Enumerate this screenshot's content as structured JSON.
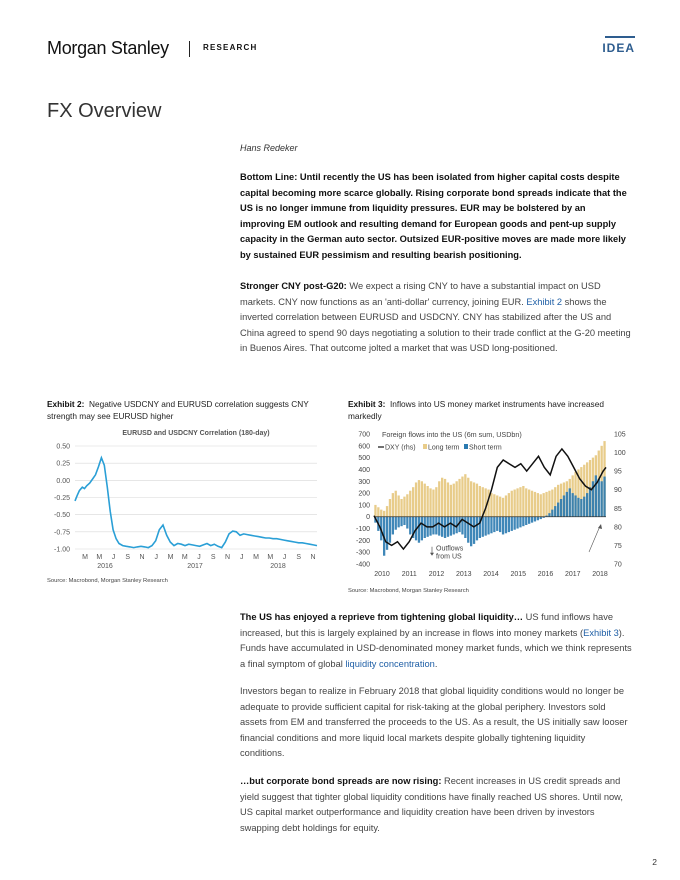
{
  "header": {
    "logo": "Morgan Stanley",
    "research": "RESEARCH",
    "idea": "IDEA"
  },
  "page_title": "FX Overview",
  "author": "Hans Redeker",
  "bottom_line": "Bottom Line: Until recently the US has been isolated from higher capital costs despite capital becoming more scarce globally. Rising corporate bond spreads indicate that the US is no longer immune from liquidity pressures. EUR may be bolstered by an improving EM outlook and resulting demand for European goods and pent-up supply capacity in the German auto sector. Outsized EUR-positive moves are made more likely by sustained EUR pessimism and resulting bearish positioning.",
  "cny_para": {
    "lead": "Stronger CNY post-G20:",
    "text1": " We expect a rising CNY to have a substantial impact on USD markets. CNY now functions as an 'anti-dollar' currency, joining EUR. ",
    "link": "Exhibit 2",
    "text2": " shows the inverted correlation between EURUSD and USDCNY. CNY has stabilized after the US and China agreed to spend 90 days negotiating a solution to their trade conflict at the G-20 meeting in Buenos Aires. That outcome jolted a market that was USD long-positioned."
  },
  "exhibit2": {
    "label": "Exhibit 2:",
    "title": "Negative USDCNY and EURUSD correlation suggests CNY strength may see EURUSD higher",
    "source": "Source: Macrobond, Morgan Stanley Research"
  },
  "exhibit3": {
    "label": "Exhibit 3:",
    "title": "Inflows into US money market instruments have increased markedly",
    "source": "Source: Macrobond, Morgan Stanley Research"
  },
  "chart_data": [
    {
      "type": "line",
      "title": "EURUSD and USDCNY Correlation (180-day)",
      "xlabel": "",
      "ylabel": "",
      "ylim": [
        -1.0,
        0.5
      ],
      "yticks": [
        "0.50",
        "0.25",
        "0.00",
        "-0.25",
        "-0.50",
        "-0.75",
        "-1.00"
      ],
      "month_ticks": [
        "M",
        "M",
        "J",
        "S",
        "N",
        "J",
        "M",
        "M",
        "J",
        "S",
        "N",
        "J",
        "M",
        "M",
        "J",
        "S",
        "N"
      ],
      "year_ticks": [
        "2016",
        "2017",
        "2018"
      ],
      "grid": true,
      "series": [
        {
          "color": "#2a9fd6",
          "x": [
            0,
            0.3,
            0.6,
            1,
            1.3,
            1.6,
            2,
            2.4,
            2.8,
            3.2,
            3.6,
            4.0,
            4.4,
            4.8,
            5.2,
            5.6,
            6,
            6.5,
            7,
            7.5,
            8,
            8.5,
            9,
            9.5,
            10,
            10.5,
            11,
            11.5,
            12,
            12.5,
            13,
            13.5,
            14,
            14.5,
            15,
            15.5,
            16,
            16.5,
            17,
            17.5,
            18,
            18.5,
            19,
            19.5,
            20,
            20.5,
            21,
            21.5,
            22,
            22.5,
            23,
            23.5,
            24,
            24.5,
            25,
            25.5,
            26,
            26.5,
            27,
            27.5,
            28,
            28.5,
            29,
            29.5,
            30,
            30.5,
            31,
            31.5,
            32,
            32.5,
            33
          ],
          "y": [
            -0.3,
            -0.22,
            -0.15,
            -0.1,
            -0.12,
            -0.08,
            -0.04,
            0.02,
            0.08,
            0.2,
            0.33,
            0.22,
            -0.1,
            -0.45,
            -0.72,
            -0.85,
            -0.92,
            -0.95,
            -0.96,
            -0.97,
            -0.98,
            -0.97,
            -0.96,
            -0.97,
            -0.98,
            -0.95,
            -0.88,
            -0.72,
            -0.65,
            -0.8,
            -0.9,
            -0.95,
            -0.92,
            -0.93,
            -0.95,
            -0.93,
            -0.94,
            -0.95,
            -0.96,
            -0.94,
            -0.92,
            -0.95,
            -0.93,
            -0.96,
            -0.98,
            -0.9,
            -0.78,
            -0.74,
            -0.75,
            -0.8,
            -0.78,
            -0.79,
            -0.8,
            -0.81,
            -0.82,
            -0.83,
            -0.84,
            -0.84,
            -0.85,
            -0.85,
            -0.86,
            -0.87,
            -0.88,
            -0.89,
            -0.9,
            -0.91,
            -0.91,
            -0.92,
            -0.93,
            -0.94,
            -0.95
          ]
        }
      ]
    },
    {
      "type": "bar",
      "title": "Foreign flows into the US (6m sum, USDbn)",
      "ylim": [
        -400,
        700
      ],
      "y2lim": [
        70,
        105
      ],
      "yticks": [
        "700",
        "600",
        "500",
        "400",
        "300",
        "200",
        "100",
        "0",
        "-100",
        "-200",
        "-300",
        "-400"
      ],
      "y2ticks": [
        "105",
        "100",
        "95",
        "90",
        "85",
        "80",
        "75",
        "70"
      ],
      "xticks": [
        "2010",
        "2011",
        "2012",
        "2013",
        "2014",
        "2015",
        "2016",
        "2017",
        "2018"
      ],
      "legend": [
        "DXY (rhs)",
        "Long term",
        "Short term"
      ],
      "annotations": [
        "Outflows",
        "from US"
      ],
      "colors": {
        "long_term": "#e8cc8a",
        "short_term": "#2a7ab0",
        "dxy": "#111111"
      },
      "series": [
        {
          "name": "Long term",
          "values": [
            100,
            80,
            60,
            50,
            90,
            150,
            200,
            220,
            180,
            150,
            170,
            190,
            220,
            250,
            290,
            310,
            300,
            280,
            260,
            240,
            230,
            250,
            300,
            330,
            320,
            290,
            270,
            280,
            300,
            320,
            340,
            360,
            330,
            300,
            290,
            280,
            260,
            250,
            240,
            230,
            200,
            190,
            180,
            170,
            160,
            180,
            200,
            220,
            230,
            240,
            250,
            260,
            240,
            230,
            220,
            210,
            200,
            190,
            200,
            210,
            220,
            230,
            250,
            270,
            280,
            290,
            300,
            320,
            350,
            380,
            400,
            420,
            440,
            460,
            480,
            500,
            520,
            560,
            600,
            640
          ]
        },
        {
          "name": "Short term",
          "values": [
            -50,
            -120,
            -200,
            -330,
            -280,
            -220,
            -150,
            -110,
            -90,
            -80,
            -70,
            -100,
            -150,
            -180,
            -200,
            -220,
            -200,
            -180,
            -170,
            -160,
            -150,
            -150,
            -160,
            -170,
            -180,
            -170,
            -160,
            -150,
            -140,
            -130,
            -150,
            -180,
            -220,
            -250,
            -230,
            -200,
            -180,
            -170,
            -160,
            -150,
            -140,
            -130,
            -120,
            -130,
            -150,
            -140,
            -130,
            -120,
            -110,
            -100,
            -90,
            -80,
            -70,
            -60,
            -50,
            -40,
            -30,
            -20,
            -10,
            10,
            30,
            60,
            90,
            120,
            150,
            180,
            210,
            240,
            200,
            180,
            160,
            150,
            170,
            200,
            250,
            300,
            350,
            320,
            300,
            340
          ]
        }
      ],
      "dxy": {
        "x": [
          0,
          2,
          4,
          6,
          8,
          10,
          12,
          14,
          16,
          18,
          20,
          22,
          24,
          26,
          28,
          30,
          32,
          34,
          36,
          38,
          40,
          42,
          44,
          46,
          48,
          50,
          52,
          54,
          56,
          58,
          60,
          62,
          64,
          66,
          68,
          70,
          72,
          74,
          76,
          78,
          79
        ],
        "y": [
          83,
          80,
          76,
          75,
          76,
          74,
          76,
          79,
          81,
          80,
          80,
          81,
          80,
          81,
          80,
          82,
          81,
          80,
          81,
          85,
          90,
          96,
          98,
          97,
          96,
          97,
          95,
          97,
          99,
          96,
          94,
          99,
          101,
          99,
          96,
          93,
          91,
          90,
          92,
          95,
          96
        ]
      }
    }
  ],
  "global_liquidity_para": {
    "lead": "The US has enjoyed a reprieve from tightening global liquidity…",
    "text1": " US fund inflows have increased, but this is largely explained by an increase in flows into money markets (",
    "link1": "Exhibit 3",
    "text2": "). Funds have accumulated in USD-denominated money market funds, which we think represents a final symptom of global ",
    "link2": "liquidity concentration",
    "text3": "."
  },
  "investors_para": "Investors began to realize in February 2018 that global liquidity conditions would no longer be adequate to provide sufficient capital for risk-taking at the global periphery. Investors sold assets from EM and transferred the proceeds to the US. As a result, the US initially saw looser financial conditions and more liquid local markets despite globally tightening liquidity conditions.",
  "spreads_para": {
    "lead": "…but corporate bond spreads are now rising:",
    "text": " Recent increases in US credit spreads and yield suggest that tighter global liquidity conditions have finally reached US shores. Until now, US capital market outperformance and liquidity creation have been driven by investors swapping debt holdings for equity."
  },
  "page_number": "2"
}
